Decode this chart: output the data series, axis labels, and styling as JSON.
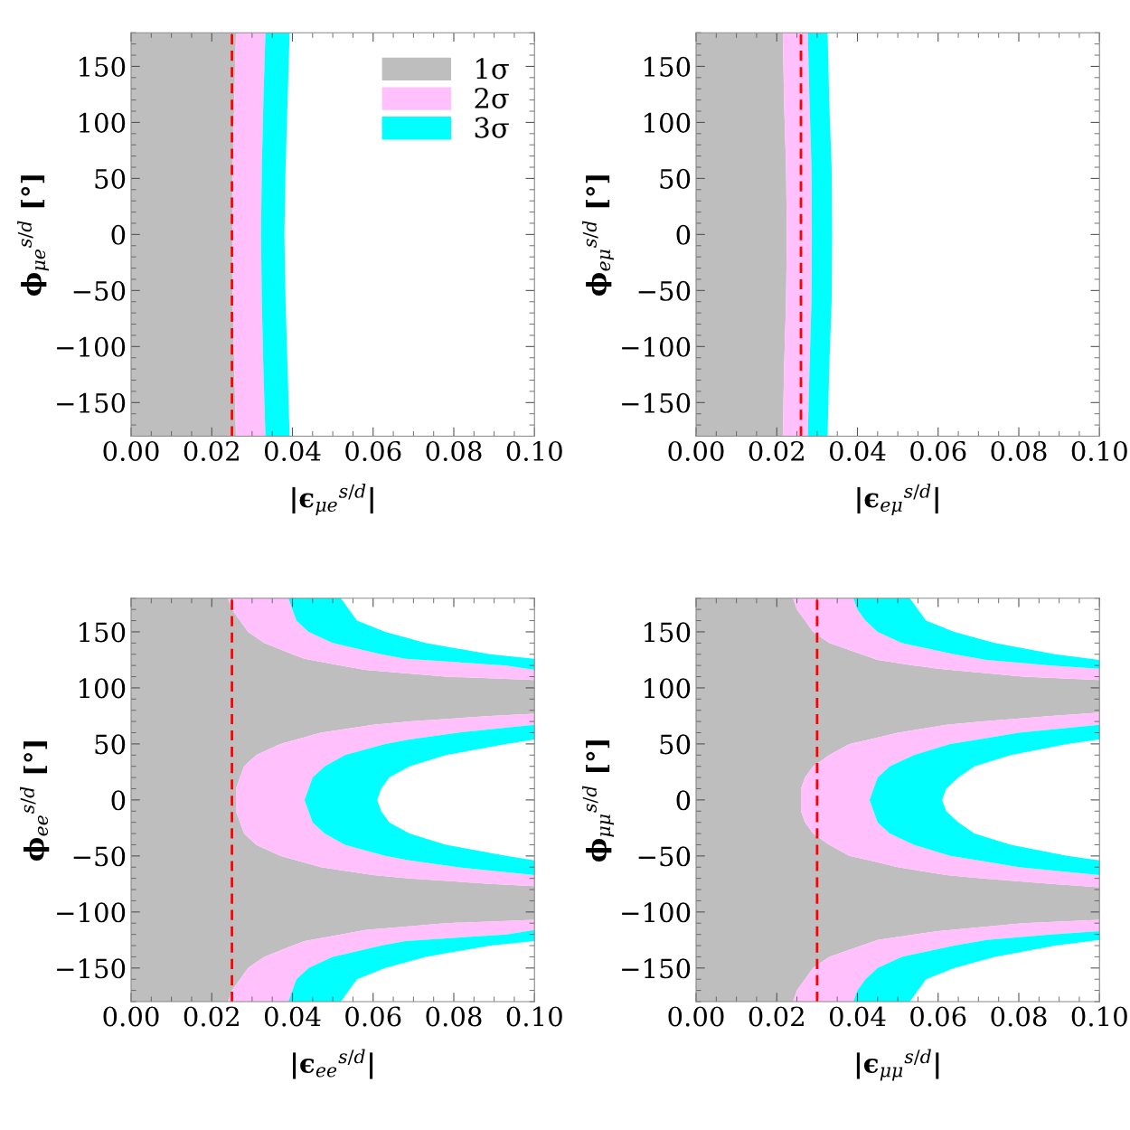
{
  "chart_data": [
    {
      "type": "area",
      "orientation": "horizontal",
      "stacked": true,
      "xlabel": "|ϵ$_{μe}$$^{s/d}$|",
      "ylabel": "ϕ$_{μe}$$^{s/d}$ [°]",
      "x": [
        180,
        120,
        60,
        0,
        -60,
        -120,
        -180
      ],
      "series": [
        {
          "name": "1σ",
          "color": "#bebebe",
          "values": [
            0.026,
            0.0256,
            0.0252,
            0.0251,
            0.0252,
            0.0256,
            0.026
          ]
        },
        {
          "name": "2σ",
          "color": "#ffc0fc",
          "values": [
            0.0073,
            0.0072,
            0.0072,
            0.0071,
            0.0072,
            0.0072,
            0.0073
          ]
        },
        {
          "name": "3σ",
          "color": "#00ffff",
          "values": [
            0.006,
            0.006,
            0.0059,
            0.0058,
            0.0059,
            0.006,
            0.006
          ]
        }
      ],
      "xlim": [
        0,
        0.1
      ],
      "ylim": [
        -180,
        180
      ],
      "xticks": [
        {
          "value": 0,
          "label": "0.00"
        },
        {
          "value": 0.02,
          "label": "0.02"
        },
        {
          "value": 0.04,
          "label": "0.04"
        },
        {
          "value": 0.06,
          "label": "0.06"
        },
        {
          "value": 0.08,
          "label": "0.08"
        },
        {
          "value": 0.1,
          "label": "0.10"
        }
      ],
      "yticks": [
        {
          "value": -150,
          "label": "−150"
        },
        {
          "value": -100,
          "label": "−100"
        },
        {
          "value": -50,
          "label": "−50"
        },
        0,
        50,
        100,
        150
      ],
      "ref_lines": [
        {
          "axis": "x",
          "value": 0.025,
          "color": "#ff0000",
          "line_style": "dashed"
        }
      ],
      "legend": "top right"
    },
    {
      "type": "area",
      "orientation": "horizontal",
      "stacked": true,
      "xlabel": "|ϵ$_{eμ}$$^{s/d}$|",
      "ylabel": "ϕ$_{eμ}$$^{s/d}$ [°]",
      "x": [
        180,
        120,
        60,
        0,
        -60,
        -120,
        -180
      ],
      "series": [
        {
          "color": "#bebebe",
          "values": [
            0.0215,
            0.0218,
            0.0223,
            0.0225,
            0.0223,
            0.0218,
            0.0215
          ]
        },
        {
          "color": "#ffc0fc",
          "values": [
            0.0062,
            0.0063,
            0.0063,
            0.0062,
            0.0063,
            0.0063,
            0.0062
          ]
        },
        {
          "color": "#00ffff",
          "values": [
            0.0049,
            0.0049,
            0.005,
            0.005,
            0.005,
            0.0049,
            0.0049
          ]
        }
      ],
      "xlim": [
        0,
        0.1
      ],
      "ylim": [
        -180,
        180
      ],
      "xticks": [
        {
          "value": 0,
          "label": "0.00"
        },
        {
          "value": 0.02,
          "label": "0.02"
        },
        {
          "value": 0.04,
          "label": "0.04"
        },
        {
          "value": 0.06,
          "label": "0.06"
        },
        {
          "value": 0.08,
          "label": "0.08"
        },
        {
          "value": 0.1,
          "label": "0.10"
        }
      ],
      "yticks": [
        {
          "value": -150,
          "label": "−150"
        },
        {
          "value": -100,
          "label": "−100"
        },
        {
          "value": -50,
          "label": "−50"
        },
        0,
        50,
        100,
        150
      ],
      "ref_lines": [
        {
          "axis": "x",
          "value": 0.026,
          "color": "#ff0000",
          "line_style": "dashed"
        }
      ]
    },
    {
      "type": "area",
      "orientation": "horizontal",
      "stacked": true,
      "xlabel": "|ϵ$_{ee}$$^{s/d}$|",
      "ylabel": "ϕ$_{ee}$$^{s/d}$ [°]",
      "x": [
        180,
        170,
        160,
        150,
        140,
        130,
        126,
        120,
        116,
        110,
        107,
        100,
        90,
        80,
        77,
        75,
        70,
        67,
        60,
        54,
        50,
        40,
        30,
        20,
        10,
        0,
        -10,
        -20,
        -30,
        -40,
        -50,
        -54,
        -60,
        -67,
        -70,
        -75,
        -77,
        -80,
        -90,
        -100,
        -107,
        -110,
        -116,
        -120,
        -126,
        -130,
        -140,
        -150,
        -160,
        -170,
        -180
      ],
      "series": [
        {
          "color": "#bebebe",
          "values": [
            0.024,
            0.025,
            0.027,
            0.029,
            0.033,
            0.04,
            0.043,
            0.052,
            0.058,
            0.078,
            0.1,
            0.1,
            0.1,
            0.1,
            0.1,
            0.089,
            0.069,
            0.06,
            0.047,
            0.041,
            0.037,
            0.031,
            0.028,
            0.027,
            0.026,
            0.026,
            0.026,
            0.027,
            0.028,
            0.031,
            0.037,
            0.041,
            0.047,
            0.06,
            0.069,
            0.089,
            0.1,
            0.1,
            0.1,
            0.1,
            0.1,
            0.078,
            0.058,
            0.052,
            0.043,
            0.04,
            0.033,
            0.029,
            0.027,
            0.025,
            0.024
          ]
        },
        {
          "color": "#ffc0fc",
          "values": [
            0.015,
            0.015,
            0.014,
            0.015,
            0.017,
            0.022,
            0.025,
            0.041,
            0.042,
            0.022,
            0,
            0,
            0,
            0,
            0,
            0.011,
            0.031,
            0.04,
            0.034,
            0.028,
            0.026,
            0.022,
            0.02,
            0.018,
            0.018,
            0.017,
            0.018,
            0.018,
            0.02,
            0.022,
            0.026,
            0.028,
            0.034,
            0.04,
            0.031,
            0.011,
            0,
            0,
            0,
            0,
            0,
            0.022,
            0.042,
            0.041,
            0.025,
            0.022,
            0.017,
            0.015,
            0.014,
            0.015,
            0.015
          ]
        },
        {
          "color": "#00ffff",
          "values": [
            0.013,
            0.014,
            0.015,
            0.019,
            0.023,
            0.027,
            0.032,
            0.007,
            0,
            0,
            0,
            0,
            0,
            0,
            0,
            0,
            0,
            0,
            0.019,
            0.031,
            0.03,
            0.025,
            0.021,
            0.019,
            0.018,
            0.018,
            0.018,
            0.019,
            0.021,
            0.025,
            0.03,
            0.031,
            0.019,
            0,
            0,
            0,
            0,
            0,
            0,
            0,
            0,
            0,
            0,
            0.007,
            0.032,
            0.027,
            0.023,
            0.019,
            0.015,
            0.014,
            0.013
          ]
        }
      ],
      "xlim": [
        0,
        0.1
      ],
      "ylim": [
        -180,
        180
      ],
      "xticks": [
        {
          "value": 0,
          "label": "0.00"
        },
        {
          "value": 0.02,
          "label": "0.02"
        },
        {
          "value": 0.04,
          "label": "0.04"
        },
        {
          "value": 0.06,
          "label": "0.06"
        },
        {
          "value": 0.08,
          "label": "0.08"
        },
        {
          "value": 0.1,
          "label": "0.10"
        }
      ],
      "yticks": [
        {
          "value": -150,
          "label": "−150"
        },
        {
          "value": -100,
          "label": "−100"
        },
        {
          "value": -50,
          "label": "−50"
        },
        0,
        50,
        100,
        150
      ],
      "ref_lines": [
        {
          "axis": "x",
          "value": 0.025,
          "color": "#ff0000",
          "line_style": "dashed"
        }
      ]
    },
    {
      "type": "area",
      "orientation": "horizontal",
      "stacked": true,
      "xlabel": "|ϵ$_{μμ}$$^{s/d}$|",
      "ylabel": "ϕ$_{μμ}$$^{s/d}$ [°]",
      "x": [
        180,
        170,
        160,
        150,
        140,
        130,
        125,
        120,
        117,
        110,
        107,
        100,
        90,
        80,
        78,
        75,
        70,
        67,
        60,
        54,
        50,
        40,
        30,
        20,
        10,
        0,
        -10,
        -20,
        -30,
        -40,
        -50,
        -54,
        -60,
        -67,
        -70,
        -75,
        -78,
        -80,
        -90,
        -100,
        -107,
        -110,
        -117,
        -120,
        -125,
        -130,
        -140,
        -150,
        -160,
        -170,
        -180
      ],
      "series": [
        {
          "color": "#bebebe",
          "values": [
            0.024,
            0.025,
            0.027,
            0.029,
            0.033,
            0.041,
            0.045,
            0.054,
            0.06,
            0.081,
            0.1,
            0.1,
            0.1,
            0.1,
            0.1,
            0.088,
            0.071,
            0.062,
            0.05,
            0.043,
            0.038,
            0.033,
            0.029,
            0.027,
            0.026,
            0.026,
            0.026,
            0.027,
            0.029,
            0.033,
            0.038,
            0.043,
            0.05,
            0.062,
            0.071,
            0.088,
            0.1,
            0.1,
            0.1,
            0.1,
            0.1,
            0.081,
            0.06,
            0.054,
            0.045,
            0.041,
            0.033,
            0.029,
            0.027,
            0.025,
            0.024
          ]
        },
        {
          "color": "#ffc0fc",
          "values": [
            0.015,
            0.015,
            0.015,
            0.016,
            0.018,
            0.023,
            0.027,
            0.034,
            0.04,
            0.019,
            0,
            0,
            0,
            0,
            0,
            0.012,
            0.029,
            0.038,
            0.03,
            0.027,
            0.025,
            0.021,
            0.019,
            0.018,
            0.018,
            0.017,
            0.018,
            0.018,
            0.019,
            0.021,
            0.025,
            0.027,
            0.03,
            0.038,
            0.029,
            0.012,
            0,
            0,
            0,
            0,
            0,
            0.019,
            0.04,
            0.034,
            0.027,
            0.023,
            0.018,
            0.016,
            0.015,
            0.015,
            0.015
          ]
        },
        {
          "color": "#00ffff",
          "values": [
            0.014,
            0.015,
            0.015,
            0.019,
            0.023,
            0.025,
            0.028,
            0.012,
            0,
            0,
            0,
            0,
            0,
            0,
            0,
            0,
            0,
            0,
            0.02,
            0.03,
            0.029,
            0.024,
            0.021,
            0.02,
            0.018,
            0.018,
            0.018,
            0.02,
            0.021,
            0.024,
            0.029,
            0.03,
            0.02,
            0,
            0,
            0,
            0,
            0,
            0,
            0,
            0,
            0,
            0,
            0.012,
            0.028,
            0.025,
            0.023,
            0.019,
            0.015,
            0.015,
            0.014
          ]
        }
      ],
      "xlim": [
        0,
        0.1
      ],
      "ylim": [
        -180,
        180
      ],
      "xticks": [
        {
          "value": 0,
          "label": "0.00"
        },
        {
          "value": 0.02,
          "label": "0.02"
        },
        {
          "value": 0.04,
          "label": "0.04"
        },
        {
          "value": 0.06,
          "label": "0.06"
        },
        {
          "value": 0.08,
          "label": "0.08"
        },
        {
          "value": 0.1,
          "label": "0.10"
        }
      ],
      "yticks": [
        {
          "value": -150,
          "label": "−150"
        },
        {
          "value": -100,
          "label": "−100"
        },
        {
          "value": -50,
          "label": "−50"
        },
        0,
        50,
        100,
        150
      ],
      "ref_lines": [
        {
          "axis": "x",
          "value": 0.03,
          "color": "#ff0000",
          "line_style": "dashed"
        }
      ]
    }
  ]
}
